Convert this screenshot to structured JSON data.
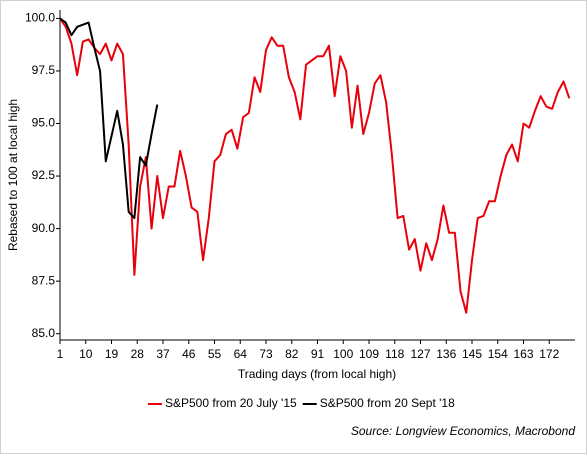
{
  "chart_data": {
    "type": "line",
    "y_label": "Rebased to 100 at local high",
    "x_label": "Trading days (from local high)",
    "source": "Source: Longview Economics, Macrobond",
    "xlim": [
      1,
      181
    ],
    "xticks": [
      1,
      10,
      19,
      28,
      37,
      46,
      55,
      64,
      73,
      82,
      91,
      100,
      109,
      118,
      127,
      136,
      145,
      154,
      163,
      172
    ],
    "ylim": [
      84.7,
      100.4
    ],
    "yticks": [
      {
        "value": 85,
        "label": "85.0"
      },
      {
        "value": 87.5,
        "label": "87.5"
      },
      {
        "value": 90,
        "label": "90.0"
      },
      {
        "value": 92.5,
        "label": "92.5"
      },
      {
        "value": 95,
        "label": "95.0"
      },
      {
        "value": 97.5,
        "label": "97.5"
      },
      {
        "value": 100,
        "label": "100.0"
      }
    ],
    "grid": false,
    "legend": "bottom",
    "x": [
      1,
      3,
      5,
      7,
      9,
      11,
      13,
      15,
      17,
      19,
      21,
      23,
      25,
      27,
      29,
      31,
      33,
      35,
      37,
      39,
      41,
      43,
      45,
      47,
      49,
      51,
      53,
      55,
      57,
      59,
      61,
      63,
      65,
      67,
      69,
      71,
      73,
      75,
      77,
      79,
      81,
      83,
      85,
      87,
      89,
      91,
      93,
      95,
      97,
      99,
      101,
      103,
      105,
      107,
      109,
      111,
      113,
      115,
      117,
      119,
      121,
      123,
      125,
      127,
      129,
      131,
      133,
      135,
      137,
      139,
      141,
      143,
      145,
      147,
      149,
      151,
      153,
      155,
      157,
      159,
      161,
      163,
      165,
      167,
      169,
      171,
      173,
      175,
      177,
      179
    ],
    "series": [
      {
        "name": "S&P500 from 20 July '15",
        "color": "#e8000b",
        "values": [
          100.0,
          99.6,
          98.8,
          97.3,
          98.9,
          99.0,
          98.6,
          98.3,
          98.8,
          98.0,
          98.8,
          98.3,
          94.0,
          87.8,
          92.0,
          93.4,
          90.0,
          92.5,
          90.5,
          92.0,
          92.0,
          93.7,
          92.5,
          91.0,
          90.8,
          88.5,
          90.5,
          93.2,
          93.5,
          94.5,
          94.7,
          93.8,
          95.3,
          95.5,
          97.2,
          96.5,
          98.5,
          99.1,
          98.7,
          98.7,
          97.2,
          96.5,
          95.2,
          97.8,
          98.0,
          98.2,
          98.2,
          98.7,
          96.3,
          98.2,
          97.5,
          94.8,
          96.8,
          94.5,
          95.5,
          96.9,
          97.3,
          96.0,
          93.5,
          90.5,
          90.6,
          89.0,
          89.5,
          88.0,
          89.3,
          88.5,
          89.5,
          91.1,
          89.8,
          89.8,
          87.0,
          86.0,
          88.5,
          90.5,
          90.6,
          91.3,
          91.3,
          92.5,
          93.5,
          94.0,
          93.2,
          95.0,
          94.8,
          95.6,
          96.3,
          95.8,
          95.7,
          96.5,
          97.0,
          96.2
        ]
      },
      {
        "name": "S&P500 from 20 Sept '18",
        "color": "#000000",
        "values": [
          100.0,
          99.8,
          99.2,
          99.6,
          99.7,
          99.8,
          98.6,
          97.5,
          93.2,
          94.4,
          95.6,
          94.0,
          90.8,
          90.5,
          93.4,
          93.0,
          94.5,
          95.9,
          null,
          null,
          null,
          null,
          null,
          null,
          null,
          null,
          null,
          null,
          null,
          null,
          null,
          null,
          null,
          null,
          null,
          null,
          null,
          null,
          null,
          null,
          null,
          null,
          null,
          null,
          null,
          null,
          null,
          null,
          null,
          null,
          null,
          null,
          null,
          null,
          null,
          null,
          null,
          null,
          null,
          null,
          null,
          null,
          null,
          null,
          null,
          null,
          null,
          null,
          null,
          null,
          null,
          null,
          null,
          null,
          null,
          null,
          null,
          null,
          null,
          null,
          null,
          null,
          null,
          null,
          null,
          null,
          null,
          null,
          null,
          null
        ]
      }
    ]
  }
}
